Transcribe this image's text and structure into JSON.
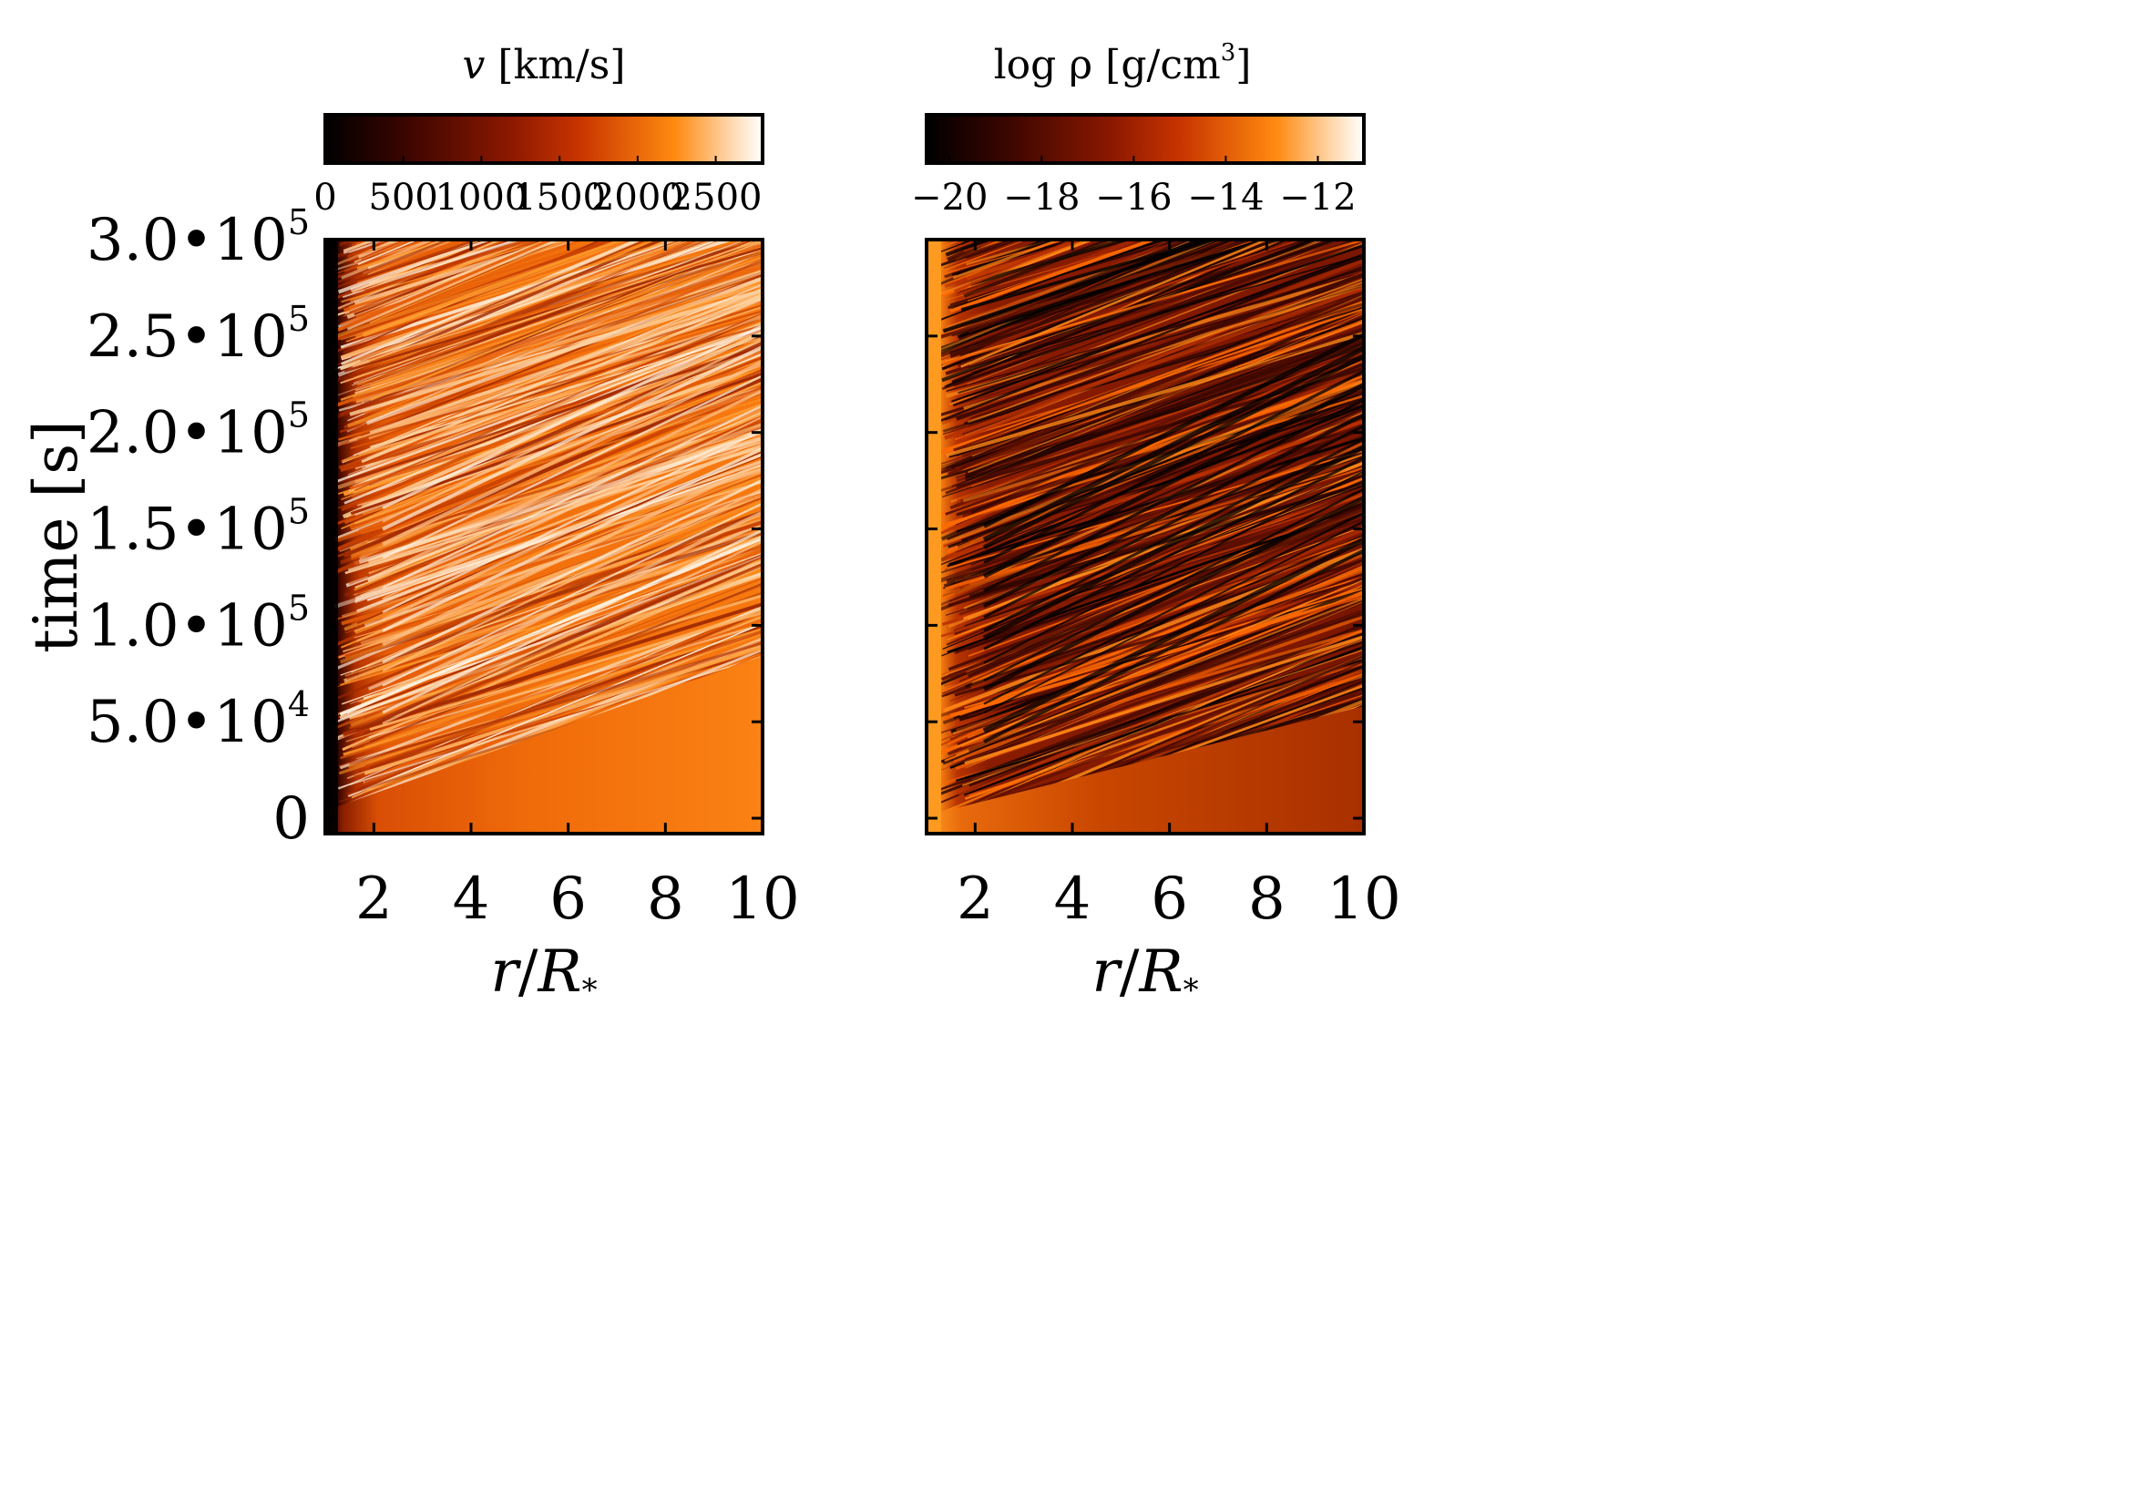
{
  "chart_data": [
    {
      "type": "heatmap",
      "panel": "left",
      "colorbar": {
        "label": "v [km/s]",
        "label_var": "v",
        "label_unit": " [km/s]",
        "ticks": [
          0,
          500,
          1000,
          1500,
          2000,
          2500
        ],
        "tick_labels": [
          "0",
          "500",
          "1000",
          "1500",
          "2000",
          "2500"
        ],
        "range": [
          0,
          2800
        ]
      },
      "xlabel": "r/R*",
      "xlabel_parts": [
        "r",
        "/",
        "R",
        "*"
      ],
      "ylabel": "time [s]",
      "xlim": [
        1,
        10
      ],
      "ylim": [
        -8000,
        300000
      ],
      "xticks": [
        2,
        4,
        6,
        8,
        10
      ],
      "xtick_labels": [
        "2",
        "4",
        "6",
        "8",
        "10"
      ],
      "yticks": [
        0,
        50000,
        100000,
        150000,
        200000,
        250000,
        300000
      ],
      "ytick_labels": [
        {
          "mant": "0",
          "exp": ""
        },
        {
          "mant": "5.0•10",
          "exp": "4"
        },
        {
          "mant": "1.0•10",
          "exp": "5"
        },
        {
          "mant": "1.5•10",
          "exp": "5"
        },
        {
          "mant": "2.0•10",
          "exp": "5"
        },
        {
          "mant": "2.5•10",
          "exp": "5"
        },
        {
          "mant": "3.0•10",
          "exp": "5"
        }
      ],
      "colormap": [
        "#000000",
        "#3a0500",
        "#8a1800",
        "#cc3a00",
        "#ff8a10",
        "#ffe0b8",
        "#ffffff"
      ],
      "description_values": {
        "inner_boundary_velocity": 0,
        "steady_wind_velocity_near_10R": 2000,
        "max_velocity": 2700
      }
    },
    {
      "type": "heatmap",
      "panel": "right",
      "colorbar": {
        "label": "log ρ [g/cm3]",
        "label_var": "log ρ [g/cm",
        "label_sup": "3",
        "label_close": "]",
        "ticks": [
          -20,
          -18,
          -16,
          -14,
          -12
        ],
        "tick_labels": [
          "−20",
          "−18",
          "−16",
          "−14",
          "−12"
        ],
        "range": [
          -20.5,
          -11
        ]
      },
      "xlabel": "r/R*",
      "xlabel_parts": [
        "r",
        "/",
        "R",
        "*"
      ],
      "xlim": [
        1,
        10
      ],
      "ylim": [
        -8000,
        300000
      ],
      "xticks": [
        2,
        4,
        6,
        8,
        10
      ],
      "xtick_labels": [
        "2",
        "4",
        "6",
        "8",
        "10"
      ],
      "yticks": [
        0,
        50000,
        100000,
        150000,
        200000,
        250000,
        300000
      ],
      "colormap": [
        "#000000",
        "#3a0500",
        "#8a1800",
        "#cc3a00",
        "#ff8a10",
        "#ffe0b8",
        "#ffffff"
      ]
    }
  ]
}
